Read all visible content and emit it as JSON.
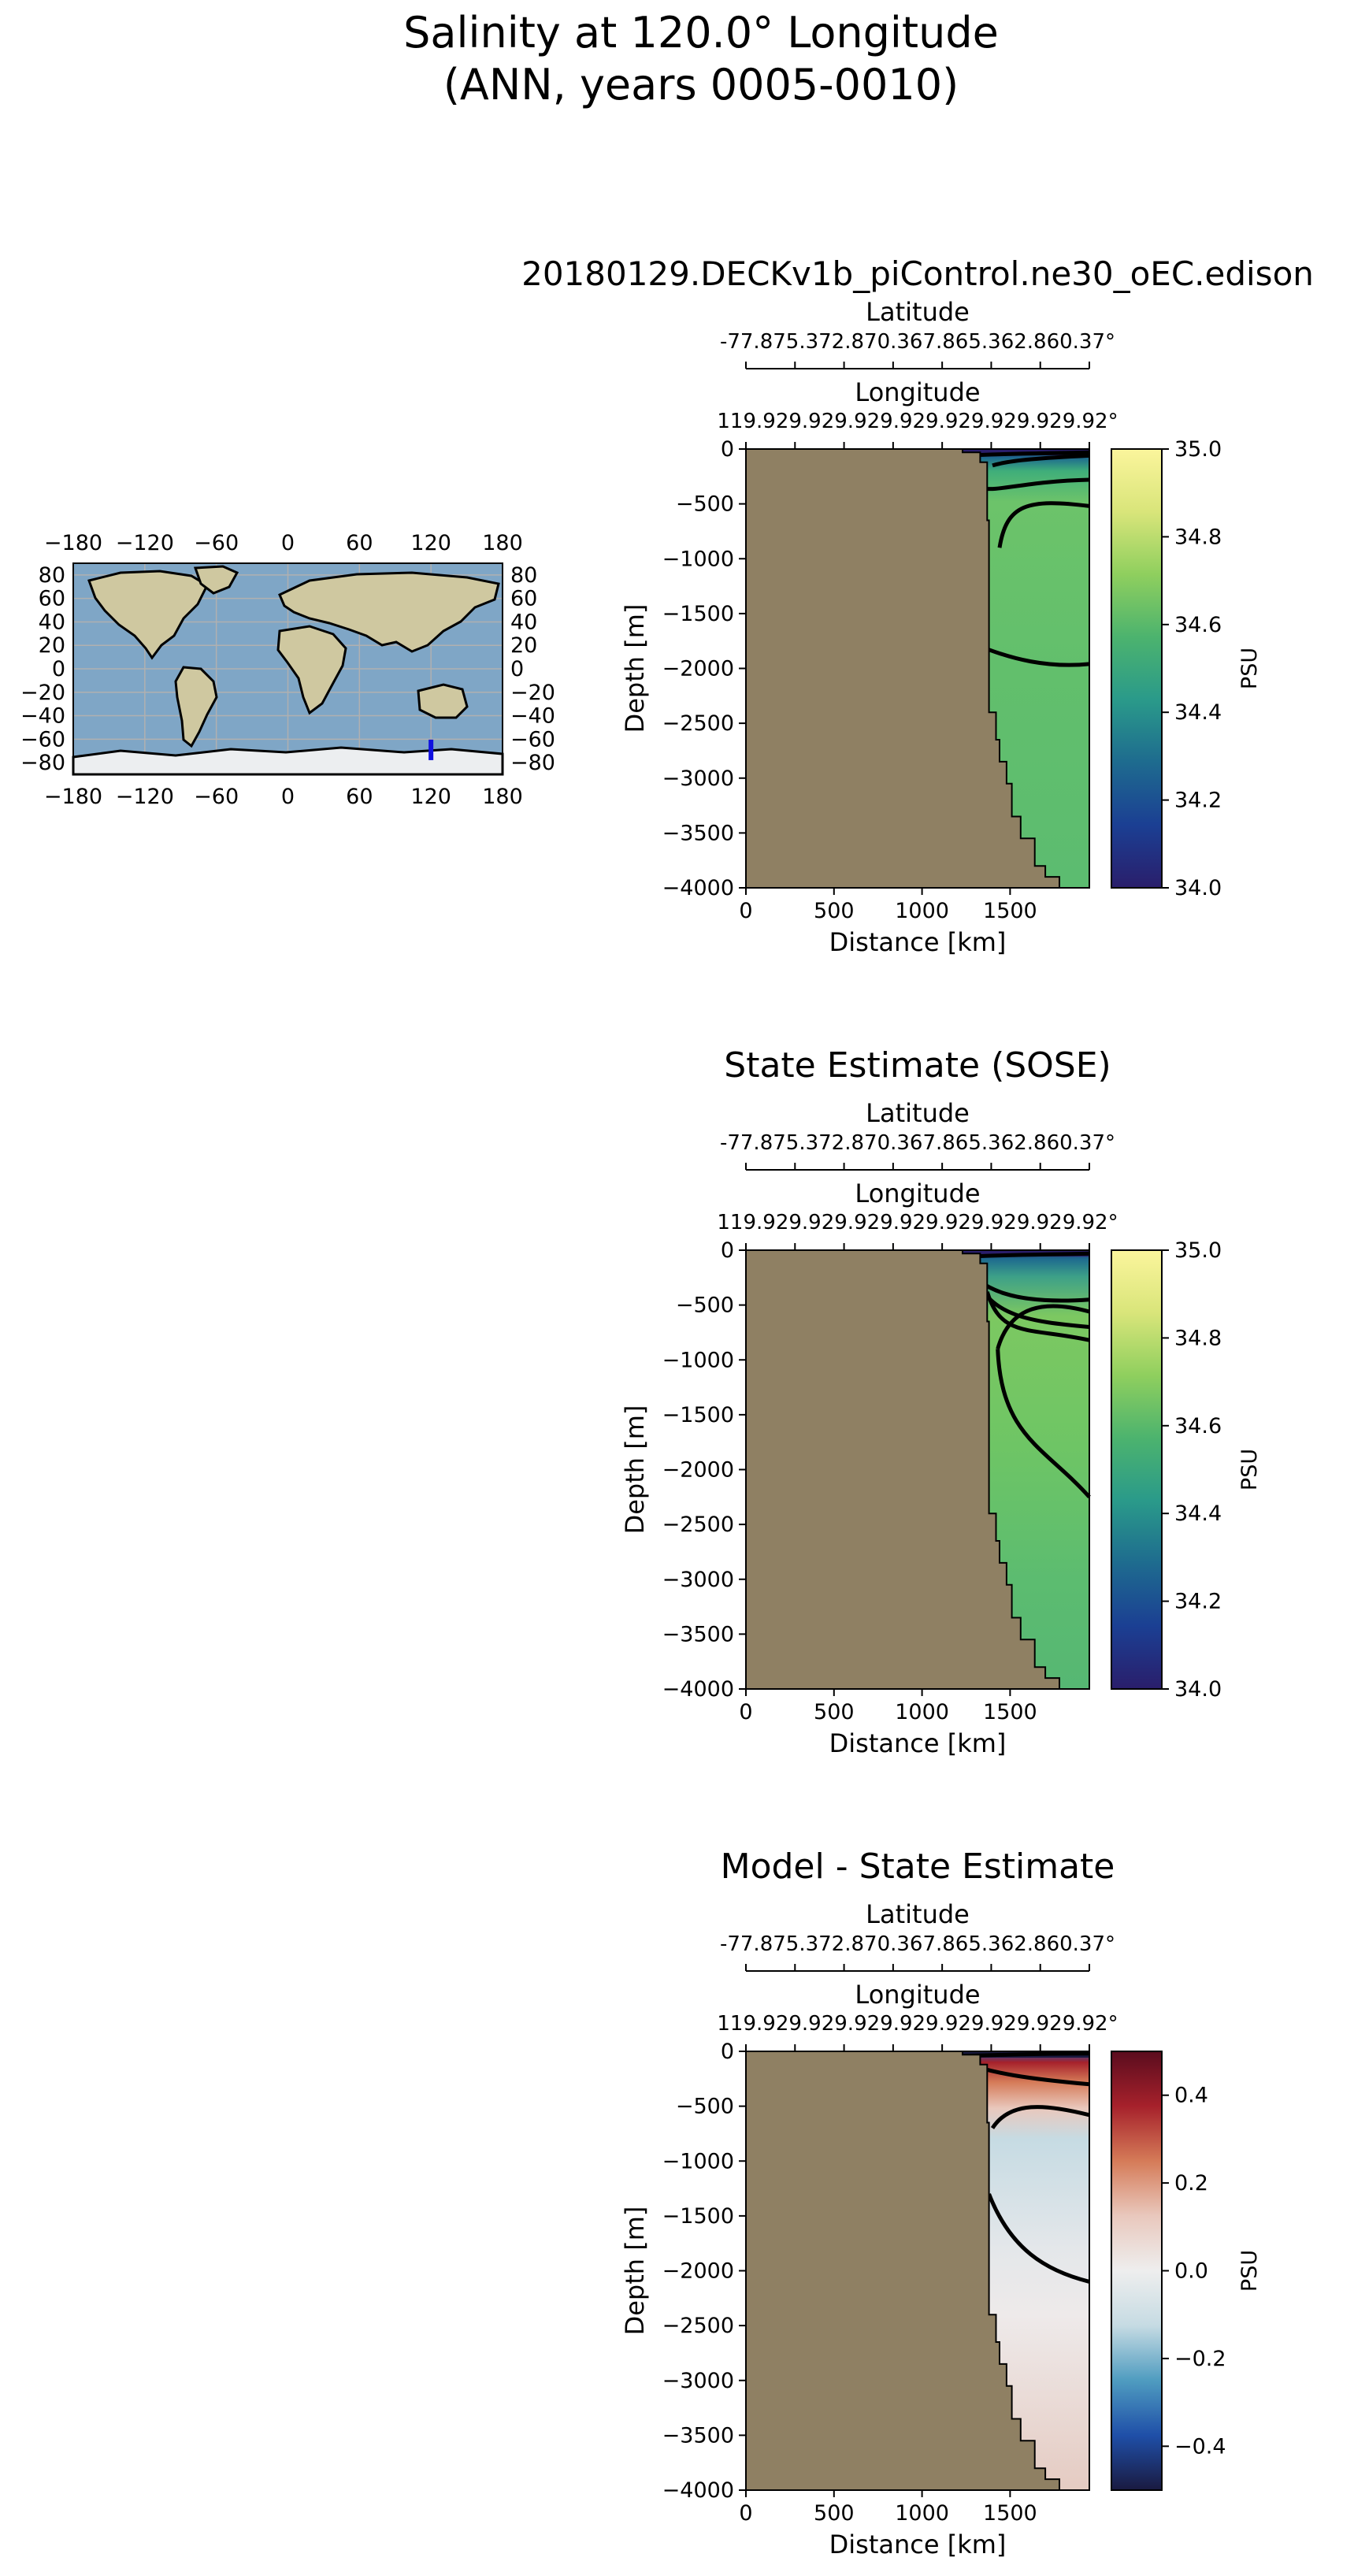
{
  "figure": {
    "title_line1": "Salinity at 120.0° Longitude",
    "title_line2": "(ANN, years 0005-0010)"
  },
  "colors": {
    "land": "#8f8063",
    "cbar_salinity_stops": [
      "#2a1e6b",
      "#1b3f93",
      "#1e6b8f",
      "#2a9a8a",
      "#4cb36e",
      "#8fcf5e",
      "#d9e57a",
      "#fbf59c"
    ],
    "cbar_diff_stops": [
      "#1a1a40",
      "#1f4fa8",
      "#4f9cc0",
      "#c6dbe3",
      "#eeeeee",
      "#e9c8bd",
      "#d57b58",
      "#a6212b",
      "#5a0c1e"
    ],
    "ocean_map": "#7fa6c6",
    "transect_line": "#1010e0"
  },
  "map": {
    "x_ticks": [
      "−180",
      "−120",
      "−60",
      "0",
      "60",
      "120",
      "180"
    ],
    "y_ticks_left": [
      "80",
      "60",
      "40",
      "20",
      "0",
      "−20",
      "−40",
      "−60",
      "−80"
    ],
    "y_ticks_right": [
      "80",
      "60",
      "40",
      "20",
      "0",
      "−20",
      "−40",
      "−60",
      "−80"
    ],
    "transect": {
      "longitude": 120.0,
      "lat_start": -77.87,
      "lat_end": -60.37
    }
  },
  "chart_data": [
    {
      "type": "heatmap",
      "title": "20180129.DECKv1b_piControl.ne30_oEC.edison",
      "field": "model",
      "xlabel": "Distance [km]",
      "ylabel": "Depth [m]",
      "xlim": [
        0,
        1950
      ],
      "ylim": [
        -4000,
        0
      ],
      "x_ticks": [
        "0",
        "500",
        "1000",
        "1500"
      ],
      "y_ticks": [
        "0",
        "−500",
        "−1000",
        "−1500",
        "−2000",
        "−2500",
        "−3000",
        "−3500",
        "−4000"
      ],
      "lat_axis_label": "Latitude",
      "lat_ticks": "-77.875.372.870.367.865.362.860.37°",
      "lon_axis_label": "Longitude",
      "lon_ticks": "119.929.929.929.929.929.929.929.92°",
      "colorbar": {
        "label": "PSU",
        "range": [
          34.0,
          35.0
        ],
        "ticks": [
          "35.0",
          "34.8",
          "34.6",
          "34.4",
          "34.2",
          "34.0"
        ]
      }
    },
    {
      "type": "heatmap",
      "title": "State Estimate (SOSE)",
      "field": "obs",
      "xlabel": "Distance [km]",
      "ylabel": "Depth [m]",
      "xlim": [
        0,
        1950
      ],
      "ylim": [
        -4000,
        0
      ],
      "x_ticks": [
        "0",
        "500",
        "1000",
        "1500"
      ],
      "y_ticks": [
        "0",
        "−500",
        "−1000",
        "−1500",
        "−2000",
        "−2500",
        "−3000",
        "−3500",
        "−4000"
      ],
      "lat_axis_label": "Latitude",
      "lat_ticks": "-77.875.372.870.367.865.362.860.37°",
      "lon_axis_label": "Longitude",
      "lon_ticks": "119.929.929.929.929.929.929.929.92°",
      "colorbar": {
        "label": "PSU",
        "range": [
          34.0,
          35.0
        ],
        "ticks": [
          "35.0",
          "34.8",
          "34.6",
          "34.4",
          "34.2",
          "34.0"
        ]
      }
    },
    {
      "type": "heatmap",
      "title": "Model - State Estimate",
      "field": "diff",
      "xlabel": "Distance [km]",
      "ylabel": "Depth [m]",
      "xlim": [
        0,
        1950
      ],
      "ylim": [
        -4000,
        0
      ],
      "x_ticks": [
        "0",
        "500",
        "1000",
        "1500"
      ],
      "y_ticks": [
        "0",
        "−500",
        "−1000",
        "−1500",
        "−2000",
        "−2500",
        "−3000",
        "−3500",
        "−4000"
      ],
      "lat_axis_label": "Latitude",
      "lat_ticks": "-77.875.372.870.367.865.362.860.37°",
      "lon_axis_label": "Longitude",
      "lon_ticks": "119.929.929.929.929.929.929.929.92°",
      "colorbar": {
        "label": "PSU",
        "range": [
          -0.5,
          0.5
        ],
        "ticks": [
          "0.4",
          "0.2",
          "0.0",
          "−0.2",
          "−0.4"
        ]
      }
    }
  ]
}
